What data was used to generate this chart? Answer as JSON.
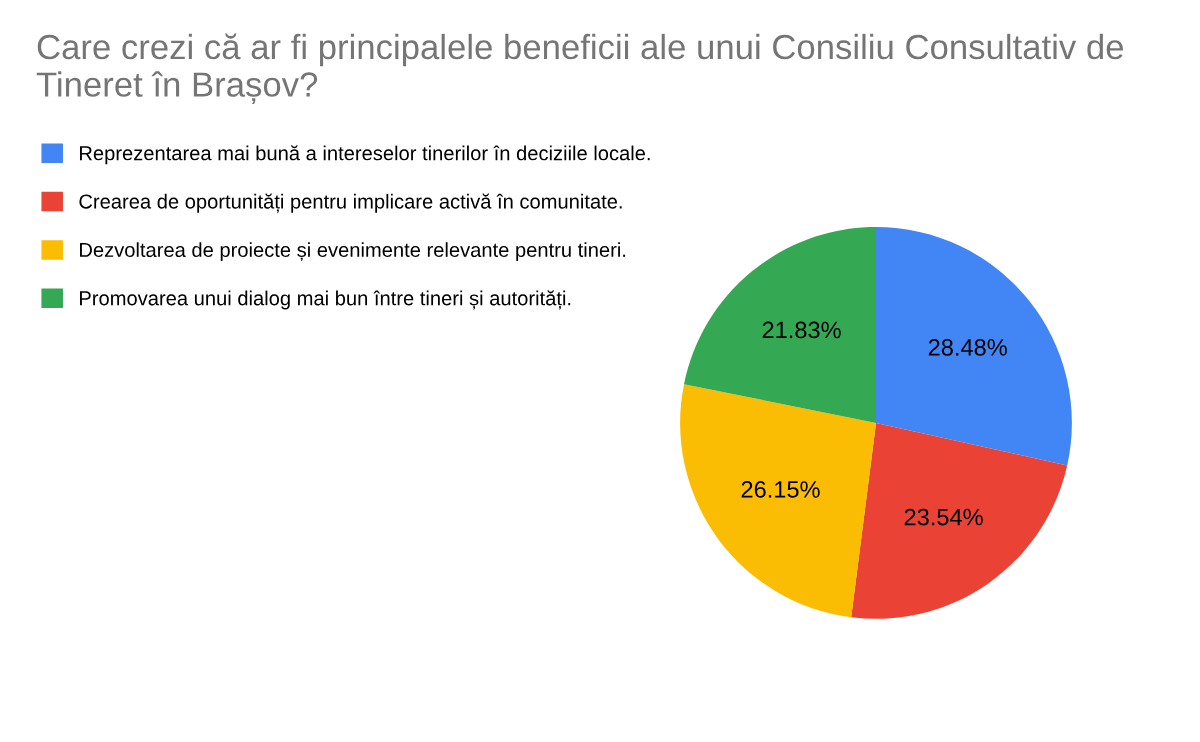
{
  "chart_data": {
    "type": "pie",
    "title": "Care crezi că ar fi principalele beneficii ale unui Consiliu Consultativ de Tineret în Brașov?",
    "categories": [
      "Reprezentarea mai bună a intereselor tinerilor în deciziile locale.",
      "Crearea de oportunități pentru implicare activă în comunitate.",
      "Dezvoltarea de proiecte și evenimente relevante pentru tineri.",
      "Promovarea unui dialog mai bun între tineri și autorități."
    ],
    "values": [
      28.48,
      23.54,
      26.15,
      21.83
    ],
    "colors": [
      "#4285f4",
      "#ea4335",
      "#fbbc04",
      "#34a853"
    ],
    "value_labels": [
      "28.48%",
      "23.54%",
      "26.15%",
      "21.83%"
    ],
    "legend": "top left"
  }
}
